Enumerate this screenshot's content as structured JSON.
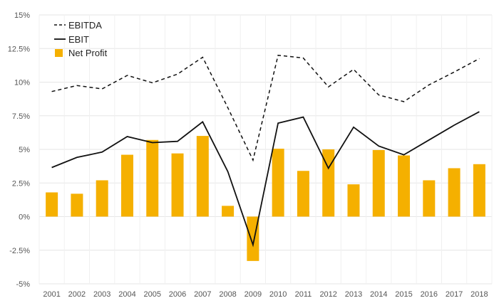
{
  "chart_data": {
    "type": "bar+line",
    "categories": [
      "2001",
      "2002",
      "2003",
      "2004",
      "2005",
      "2006",
      "2007",
      "2008",
      "2009",
      "2010",
      "2011",
      "2012",
      "2013",
      "2014",
      "2015",
      "2016",
      "2017",
      "2018"
    ],
    "series": [
      {
        "name": "EBITDA",
        "kind": "line",
        "style": "dashed",
        "color": "#111111",
        "values": [
          9.3,
          9.75,
          9.5,
          10.5,
          9.95,
          10.6,
          11.85,
          8.1,
          4.2,
          12.0,
          11.8,
          9.65,
          10.95,
          9.05,
          8.55,
          9.8,
          10.75,
          11.75
        ]
      },
      {
        "name": "EBIT",
        "kind": "line",
        "style": "solid",
        "color": "#111111",
        "values": [
          3.65,
          4.4,
          4.8,
          5.95,
          5.5,
          5.6,
          7.05,
          3.35,
          -2.1,
          6.95,
          7.4,
          3.6,
          6.65,
          5.25,
          4.6,
          5.7,
          6.8,
          7.8
        ]
      },
      {
        "name": "Net Profit",
        "kind": "bar",
        "color": "#F5B000",
        "values": [
          1.8,
          1.7,
          2.7,
          4.6,
          5.7,
          4.7,
          6.0,
          0.8,
          -3.3,
          5.05,
          3.4,
          5.0,
          2.4,
          4.95,
          4.55,
          2.7,
          3.6,
          3.9
        ]
      }
    ],
    "y_ticks": [
      "15%",
      "12.5%",
      "10%",
      "7.5%",
      "5%",
      "2.5%",
      "0%",
      "-2.5%",
      "-5%"
    ],
    "ylim": [
      -5,
      15
    ],
    "y_step": 2.5,
    "title": "",
    "xlabel": "",
    "ylabel": "",
    "grid": "horizontal + vertical category separators",
    "legend_position": "top-left"
  }
}
